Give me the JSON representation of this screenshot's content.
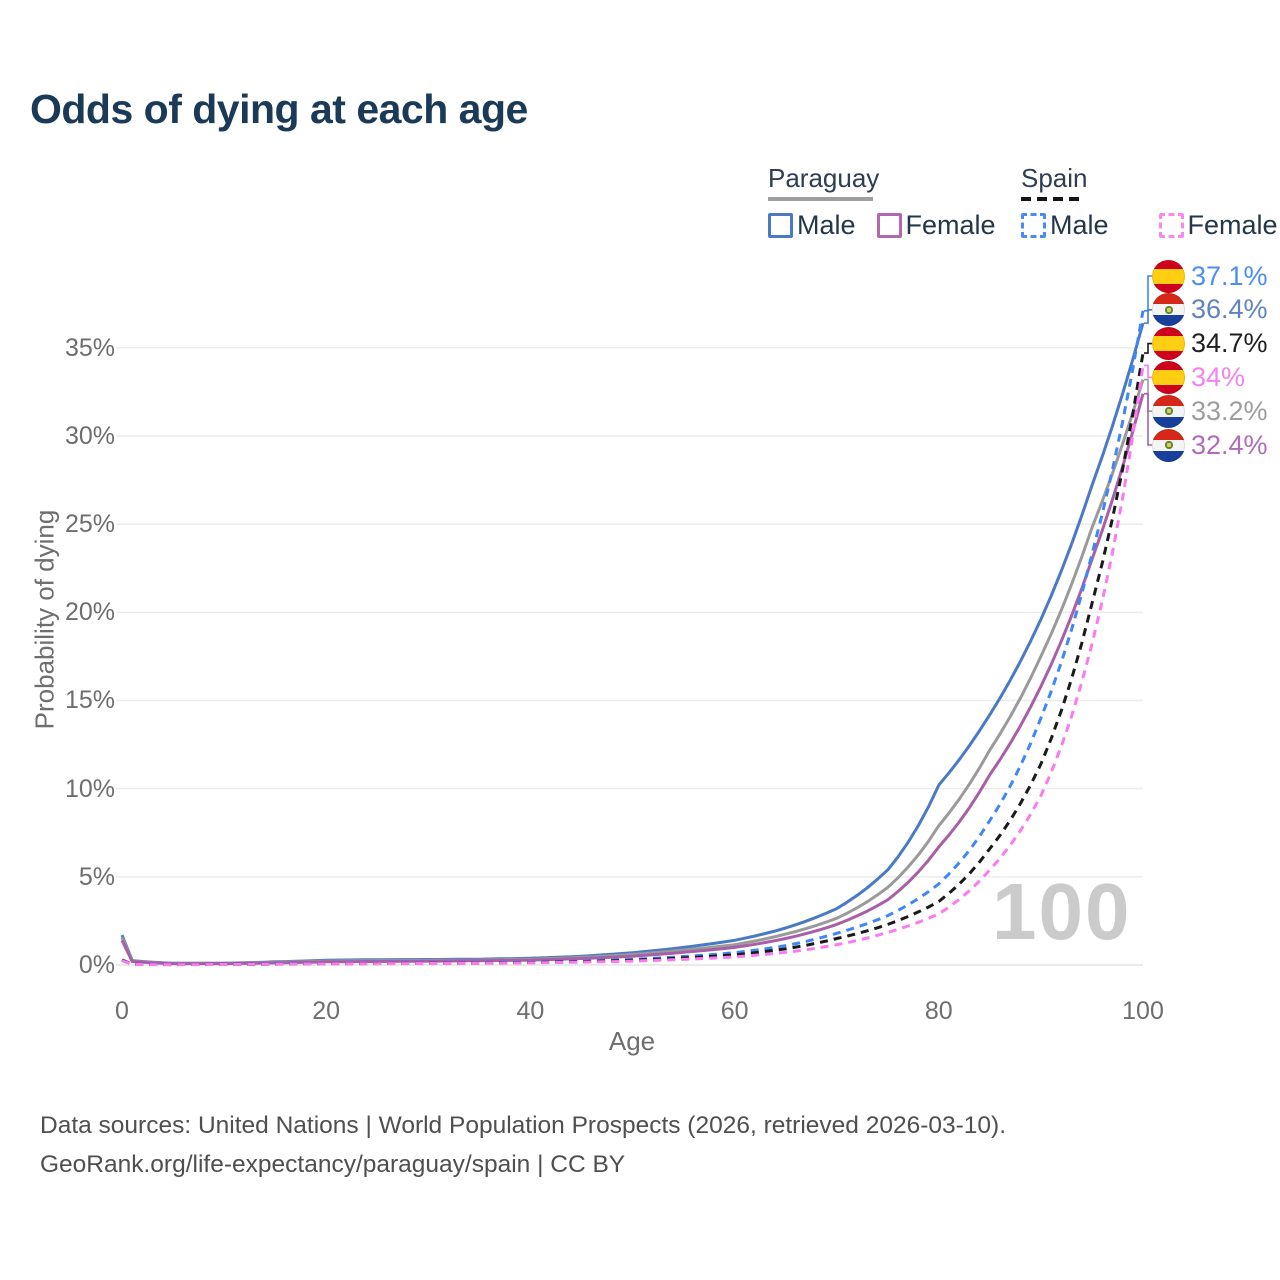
{
  "title": "Odds of dying at each age",
  "legend": {
    "groups": [
      {
        "country": "Paraguay",
        "line_style": "solid",
        "line_color": "#9e9e9e",
        "items": [
          {
            "label": "Male",
            "color": "#4a79c5"
          },
          {
            "label": "Female",
            "color": "#b168ae"
          }
        ]
      },
      {
        "country": "Spain",
        "line_style": "dashed",
        "line_color": "#141414",
        "items": [
          {
            "label": "Male",
            "color": "#4b8bf5"
          },
          {
            "label": "Female",
            "color": "#fb86f0"
          }
        ]
      }
    ]
  },
  "chart_data": {
    "type": "line",
    "title": "Odds of dying at each age",
    "xlabel": "Age",
    "ylabel": "Probability of dying",
    "xlim": [
      0,
      100
    ],
    "ylim": [
      0,
      38
    ],
    "x_ticks": [
      0,
      20,
      40,
      60,
      80,
      100
    ],
    "y_tick_values": [
      0,
      5,
      10,
      15,
      20,
      25,
      30,
      35
    ],
    "y_tick_suffix": "%",
    "grid": true,
    "age_marker": "100",
    "x": [
      0,
      1,
      5,
      10,
      15,
      20,
      25,
      30,
      35,
      40,
      45,
      50,
      55,
      60,
      65,
      70,
      75,
      80,
      85,
      90,
      95,
      100
    ],
    "series": [
      {
        "name": "Paraguay Male",
        "country": "Paraguay",
        "sex": "Male",
        "style": "solid",
        "color": "#4a79c5",
        "end_label": "36.4%",
        "label_color": "#5e82c2",
        "flag": "paraguay-flag-icon",
        "values": [
          1.7,
          0.25,
          0.1,
          0.1,
          0.18,
          0.27,
          0.3,
          0.31,
          0.33,
          0.38,
          0.5,
          0.7,
          1.0,
          1.4,
          2.1,
          3.2,
          5.4,
          10.2,
          14.2,
          19.6,
          27.2,
          36.4
        ]
      },
      {
        "name": "Paraguay Both sexes",
        "country": "Paraguay",
        "sex": "Both",
        "style": "solid",
        "color": "#9a9a9a",
        "end_label": "33.2%",
        "label_color": "#9d9d9d",
        "flag": "paraguay-flag-icon",
        "values": [
          1.55,
          0.22,
          0.09,
          0.09,
          0.15,
          0.22,
          0.25,
          0.26,
          0.28,
          0.33,
          0.43,
          0.6,
          0.85,
          1.15,
          1.75,
          2.65,
          4.4,
          7.9,
          12.2,
          17.5,
          24.8,
          33.2
        ]
      },
      {
        "name": "Paraguay Female",
        "country": "Paraguay",
        "sex": "Female",
        "style": "solid",
        "color": "#a85fa8",
        "end_label": "32.4%",
        "label_color": "#b06cba",
        "flag": "paraguay-flag-icon",
        "values": [
          1.4,
          0.2,
          0.08,
          0.08,
          0.12,
          0.18,
          0.2,
          0.22,
          0.24,
          0.28,
          0.37,
          0.5,
          0.72,
          1.0,
          1.5,
          2.3,
          3.7,
          6.7,
          10.8,
          15.8,
          23.0,
          32.4
        ]
      },
      {
        "name": "Spain Male",
        "country": "Spain",
        "sex": "Male",
        "style": "dashed",
        "color": "#3f86f6",
        "end_label": "37.1%",
        "label_color": "#4d8df2",
        "flag": "spain-flag-icon",
        "values": [
          0.3,
          0.04,
          0.03,
          0.04,
          0.06,
          0.09,
          0.1,
          0.11,
          0.12,
          0.16,
          0.22,
          0.32,
          0.48,
          0.7,
          1.1,
          1.8,
          2.8,
          4.6,
          8.2,
          14.0,
          23.3,
          37.1
        ]
      },
      {
        "name": "Spain Both sexes",
        "country": "Spain",
        "sex": "Both",
        "style": "dashed",
        "color": "#1a1a1a",
        "end_label": "34.7%",
        "label_color": "#1f1f1f",
        "flag": "spain-flag-icon",
        "values": [
          0.27,
          0.035,
          0.025,
          0.035,
          0.05,
          0.075,
          0.085,
          0.095,
          0.11,
          0.14,
          0.19,
          0.27,
          0.4,
          0.58,
          0.92,
          1.5,
          2.3,
          3.6,
          6.6,
          11.4,
          20.5,
          34.7
        ]
      },
      {
        "name": "Spain Female",
        "country": "Spain",
        "sex": "Female",
        "style": "dashed",
        "color": "#fb7af0",
        "end_label": "34%",
        "label_color": "#f583ef",
        "flag": "spain-flag-icon",
        "values": [
          0.25,
          0.03,
          0.02,
          0.03,
          0.045,
          0.065,
          0.075,
          0.085,
          0.095,
          0.12,
          0.16,
          0.22,
          0.32,
          0.46,
          0.72,
          1.15,
          1.85,
          2.9,
          5.4,
          9.6,
          18.2,
          34.0
        ]
      }
    ]
  },
  "footer": {
    "line1": "Data sources: United Nations | World Population Prospects (2026, retrieved 2026-03-10).",
    "line2": "GeoRank.org/life-expectancy/paraguay/spain | CC BY"
  }
}
